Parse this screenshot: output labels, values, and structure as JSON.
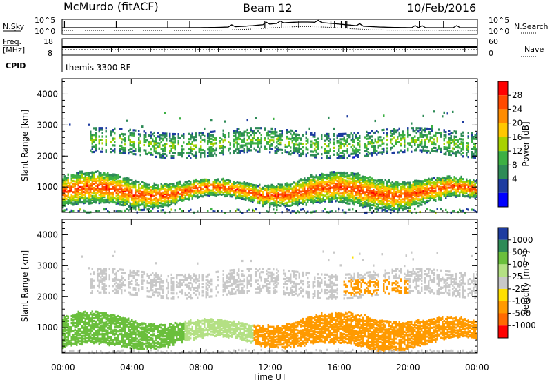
{
  "header": {
    "station": "McMurdo (fitACF)",
    "beam": "Beam 12",
    "date": "10/Feb/2016"
  },
  "top_panels": {
    "nsky_label": "N.Sky",
    "nsearch_label": "N.Search",
    "noise_ticks_left": [
      "10^5",
      "10^0"
    ],
    "noise_ticks_right": [
      "10^5",
      "10^0"
    ],
    "freq_label_1": "Freq.",
    "freq_label_2": "[MHz]",
    "freq_ticks": [
      "18",
      "8"
    ],
    "nave_label": "Nave",
    "nave_ticks": [
      "60",
      "0"
    ],
    "cpid_label": "CPID",
    "cpid_value": "themis 3300 RF"
  },
  "x_axis": {
    "label": "Time UT",
    "ticks": [
      "00:00",
      "04:00",
      "08:00",
      "12:00",
      "16:00",
      "20:00",
      "00:00"
    ]
  },
  "power_colorbar": {
    "label": "Power [dB]",
    "ticks": [
      "28",
      "24",
      "20",
      "16",
      "12",
      "8",
      "4"
    ],
    "colors": [
      "#ff0000",
      "#ff4a00",
      "#ff8c00",
      "#ffc800",
      "#a8d200",
      "#3cb043",
      "#2e8b57",
      "#1e3ca0",
      "#0000ff"
    ]
  },
  "velocity_colorbar": {
    "label": "Velocity [m s⁻¹]",
    "ticks": [
      "1000",
      "500",
      "100",
      "25",
      "-25",
      "-100",
      "-500",
      "-1000"
    ],
    "colors": [
      "#1e3ca0",
      "#2e8b57",
      "#6abf3c",
      "#b4e084",
      "#c8c8c8",
      "#ffe000",
      "#ff9a00",
      "#ff6a00",
      "#ff0000"
    ]
  },
  "chart_data": [
    {
      "type": "heatmap",
      "title": "Power",
      "ylabel": "Slant Range [km]",
      "xlabel": "Time UT",
      "ylim": [
        180,
        4500
      ],
      "yticks": [
        1000,
        2000,
        3000,
        4000
      ],
      "xlim_hours": [
        0,
        24
      ],
      "colorbar_label": "Power [dB]",
      "colorbar_range": [
        0,
        30
      ],
      "bands": [
        {
          "name": "lower",
          "range_km": [
            500,
            1500
          ],
          "typical_power_db": 18
        },
        {
          "name": "upper",
          "range_km": [
            2000,
            2900
          ],
          "typical_power_db": 12
        }
      ]
    },
    {
      "type": "heatmap",
      "title": "Velocity",
      "ylabel": "Slant Range [km]",
      "xlabel": "Time UT",
      "ylim": [
        180,
        4500
      ],
      "yticks": [
        1000,
        2000,
        3000,
        4000
      ],
      "xlim_hours": [
        0,
        24
      ],
      "colorbar_label": "Velocity [m s⁻¹]",
      "colorbar_ticks": [
        1000,
        500,
        100,
        25,
        -25,
        -100,
        -500,
        -1000
      ],
      "bands": [
        {
          "name": "lower",
          "range_km": [
            500,
            1500
          ],
          "hours": [
            0,
            11
          ],
          "typical_velocity": 300
        },
        {
          "name": "lower",
          "range_km": [
            500,
            1500
          ],
          "hours": [
            11,
            24
          ],
          "typical_velocity": -300
        },
        {
          "name": "upper",
          "range_km": [
            2000,
            2900
          ],
          "typical_velocity": 0
        }
      ]
    }
  ]
}
